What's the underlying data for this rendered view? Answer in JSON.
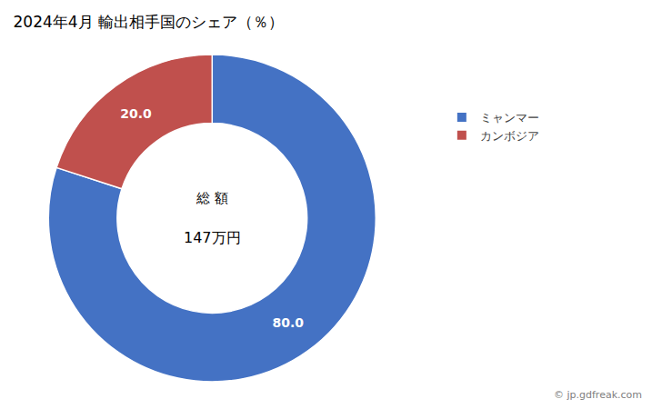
{
  "chart_data": {
    "type": "donut",
    "title": "2024年4月 輸出相手国のシェア（％）",
    "categories": [
      "ミャンマー",
      "カンボジア"
    ],
    "values": [
      80.0,
      20.0
    ],
    "value_labels": [
      "80.0",
      "20.0"
    ],
    "colors": [
      "#4472C4",
      "#C0504D"
    ],
    "data_labels": true,
    "legend": "right",
    "annotations": [
      "総 額",
      "147万円",
      "© jp.gdfreak.com"
    ]
  }
}
